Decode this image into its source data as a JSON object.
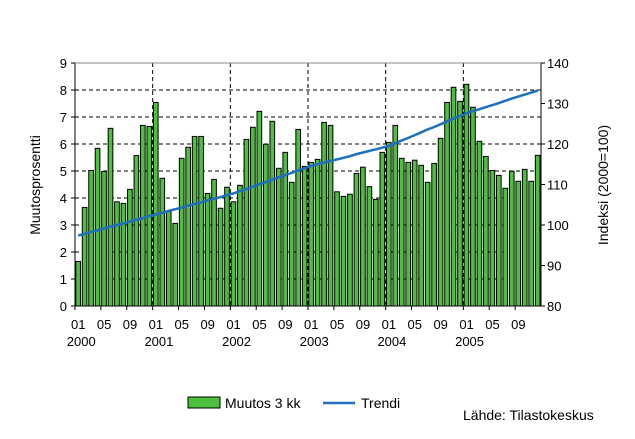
{
  "chart_data": {
    "type": "bar+line",
    "title": "",
    "ylabel_left": "Muutosprosentti",
    "ylabel_right": "Indeksi (2000=100)",
    "ylim_left": [
      0,
      9
    ],
    "ylim_right": [
      80,
      140
    ],
    "yticks_left": [
      "0",
      "1",
      "2",
      "3",
      "4",
      "5",
      "6",
      "7",
      "8",
      "9"
    ],
    "yticks_right": [
      "80",
      "90",
      "100",
      "110",
      "120",
      "130",
      "140"
    ],
    "x_month_ticks": [
      "01",
      "05",
      "09"
    ],
    "years": [
      "2000",
      "2001",
      "2002",
      "2003",
      "2004",
      "2005"
    ],
    "grid": "dashed",
    "legend_position": "bottom",
    "source": "Lähde: Tilastokeskus",
    "colors": {
      "bar": "#4cbf3c",
      "line": "#1f6fbf"
    },
    "series": [
      {
        "name": "Muutos 3 kk",
        "type": "bar",
        "axis": "left",
        "values": [
          1.65,
          3.65,
          5.02,
          5.84,
          4.98,
          6.58,
          3.86,
          3.8,
          4.32,
          5.57,
          6.69,
          6.65,
          7.54,
          4.73,
          3.5,
          3.06,
          5.47,
          5.88,
          6.28,
          6.28,
          4.17,
          4.69,
          3.62,
          4.4,
          3.86,
          4.47,
          6.17,
          6.62,
          7.21,
          5.99,
          6.84,
          5.1,
          5.69,
          4.58,
          6.54,
          5.17,
          5.32,
          5.43,
          6.8,
          6.69,
          4.23,
          4.06,
          4.14,
          4.91,
          5.14,
          4.42,
          3.95,
          5.69,
          6.06,
          6.69,
          5.47,
          5.32,
          5.4,
          5.21,
          4.58,
          5.28,
          6.21,
          7.54,
          8.1,
          7.58,
          8.21,
          7.36,
          6.1,
          5.54,
          5.02,
          4.84,
          4.36,
          4.99,
          4.62,
          5.06,
          4.62,
          5.58
        ]
      },
      {
        "name": "Trendi",
        "type": "line",
        "axis": "right",
        "values": [
          97.4,
          97.8,
          98.3,
          98.7,
          99.1,
          99.6,
          100.0,
          100.4,
          100.9,
          101.3,
          101.7,
          102.2,
          102.6,
          103.0,
          103.5,
          103.9,
          104.3,
          104.8,
          105.2,
          105.6,
          106.1,
          106.5,
          106.9,
          107.4,
          107.8,
          108.4,
          108.9,
          109.5,
          110.1,
          110.6,
          111.2,
          111.8,
          112.3,
          112.9,
          113.5,
          114.0,
          114.6,
          115.0,
          115.4,
          115.8,
          116.2,
          116.6,
          117.0,
          117.5,
          117.9,
          118.3,
          118.7,
          119.1,
          119.5,
          120.2,
          120.9,
          121.5,
          122.2,
          122.9,
          123.6,
          124.2,
          124.9,
          125.6,
          126.3,
          126.9,
          127.6,
          128.1,
          128.6,
          129.1,
          129.6,
          130.1,
          130.7,
          131.2,
          131.7,
          132.2,
          132.7,
          133.2
        ]
      }
    ]
  }
}
